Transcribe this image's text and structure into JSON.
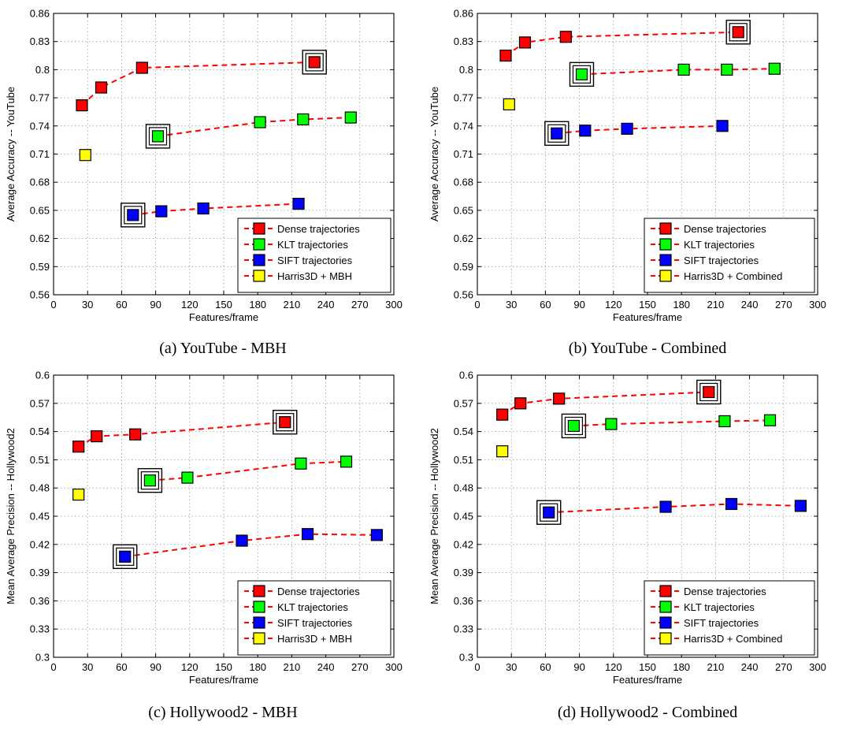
{
  "chart_data": [
    {
      "type": "scatter",
      "caption": "(a) YouTube - MBH",
      "xlabel": "Features/frame",
      "ylabel": "Average Accuracy -- YouTube",
      "xlim": [
        0,
        300
      ],
      "ylim": [
        0.56,
        0.86
      ],
      "xticks": [
        "0",
        "30",
        "60",
        "90",
        "120",
        "150",
        "180",
        "210",
        "240",
        "270",
        "300"
      ],
      "yticks": [
        "0.56",
        "0.59",
        "0.62",
        "0.65",
        "0.68",
        "0.71",
        "0.74",
        "0.77",
        "0.8",
        "0.83",
        "0.86"
      ],
      "grid": true,
      "legend_position": "bottom-right",
      "series": [
        {
          "name": "Dense trajectories",
          "color": "#ff0000",
          "line": true,
          "x": [
            25,
            42,
            78,
            230
          ],
          "y": [
            0.762,
            0.781,
            0.802,
            0.808
          ],
          "highlight_index": 3
        },
        {
          "name": "KLT trajectories",
          "color": "#00ff00",
          "line": true,
          "x": [
            92,
            182,
            220,
            262
          ],
          "y": [
            0.729,
            0.744,
            0.747,
            0.749
          ],
          "highlight_index": 0
        },
        {
          "name": "SIFT trajectories",
          "color": "#0000ff",
          "line": true,
          "x": [
            70,
            95,
            132,
            216
          ],
          "y": [
            0.645,
            0.649,
            0.652,
            0.657
          ],
          "highlight_index": 0
        },
        {
          "name": "Harris3D + MBH",
          "color": "#ffff00",
          "line": false,
          "x": [
            28
          ],
          "y": [
            0.709
          ],
          "highlight_index": null
        }
      ]
    },
    {
      "type": "scatter",
      "caption": "(b) YouTube - Combined",
      "xlabel": "Features/frame",
      "ylabel": "Average Accuracy -- YouTube",
      "xlim": [
        0,
        300
      ],
      "ylim": [
        0.56,
        0.86
      ],
      "xticks": [
        "0",
        "30",
        "60",
        "90",
        "120",
        "150",
        "180",
        "210",
        "240",
        "270",
        "300"
      ],
      "yticks": [
        "0.56",
        "0.59",
        "0.62",
        "0.65",
        "0.68",
        "0.71",
        "0.74",
        "0.77",
        "0.8",
        "0.83",
        "0.86"
      ],
      "grid": true,
      "legend_position": "bottom-right",
      "series": [
        {
          "name": "Dense trajectories",
          "color": "#ff0000",
          "line": true,
          "x": [
            25,
            42,
            78,
            230
          ],
          "y": [
            0.815,
            0.829,
            0.835,
            0.84
          ],
          "highlight_index": 3
        },
        {
          "name": "KLT trajectories",
          "color": "#00ff00",
          "line": true,
          "x": [
            92,
            182,
            220,
            262
          ],
          "y": [
            0.795,
            0.8,
            0.8,
            0.801
          ],
          "highlight_index": 0
        },
        {
          "name": "SIFT trajectories",
          "color": "#0000ff",
          "line": true,
          "x": [
            70,
            95,
            132,
            216
          ],
          "y": [
            0.732,
            0.735,
            0.737,
            0.74
          ],
          "highlight_index": 0
        },
        {
          "name": "Harris3D + Combined",
          "color": "#ffff00",
          "line": false,
          "x": [
            28
          ],
          "y": [
            0.763
          ],
          "highlight_index": null
        }
      ]
    },
    {
      "type": "scatter",
      "caption": "(c) Hollywood2 - MBH",
      "xlabel": "Features/frame",
      "ylabel": "Mean Average Precision -- Hollywood2",
      "xlim": [
        0,
        300
      ],
      "ylim": [
        0.3,
        0.6
      ],
      "xticks": [
        "0",
        "30",
        "60",
        "90",
        "120",
        "150",
        "180",
        "210",
        "240",
        "270",
        "300"
      ],
      "yticks": [
        "0.3",
        "0.33",
        "0.36",
        "0.39",
        "0.42",
        "0.45",
        "0.48",
        "0.51",
        "0.54",
        "0.57",
        "0.6"
      ],
      "grid": true,
      "legend_position": "bottom-right",
      "series": [
        {
          "name": "Dense trajectories",
          "color": "#ff0000",
          "line": true,
          "x": [
            22,
            38,
            72,
            204
          ],
          "y": [
            0.524,
            0.535,
            0.537,
            0.55
          ],
          "highlight_index": 3
        },
        {
          "name": "KLT trajectories",
          "color": "#00ff00",
          "line": true,
          "x": [
            85,
            118,
            218,
            258
          ],
          "y": [
            0.488,
            0.491,
            0.506,
            0.508
          ],
          "highlight_index": 0
        },
        {
          "name": "SIFT trajectories",
          "color": "#0000ff",
          "line": true,
          "x": [
            63,
            166,
            224,
            285
          ],
          "y": [
            0.407,
            0.424,
            0.431,
            0.43
          ],
          "highlight_index": 0
        },
        {
          "name": "Harris3D + MBH",
          "color": "#ffff00",
          "line": false,
          "x": [
            22
          ],
          "y": [
            0.473
          ],
          "highlight_index": null
        }
      ]
    },
    {
      "type": "scatter",
      "caption": "(d) Hollywood2 - Combined",
      "xlabel": "Features/frame",
      "ylabel": "Mean Average Precision -- Hollywood2",
      "xlim": [
        0,
        300
      ],
      "ylim": [
        0.3,
        0.6
      ],
      "xticks": [
        "0",
        "30",
        "60",
        "90",
        "120",
        "150",
        "180",
        "210",
        "240",
        "270",
        "300"
      ],
      "yticks": [
        "0.3",
        "0.33",
        "0.36",
        "0.39",
        "0.42",
        "0.45",
        "0.48",
        "0.51",
        "0.54",
        "0.57",
        "0.6"
      ],
      "grid": true,
      "legend_position": "bottom-right",
      "series": [
        {
          "name": "Dense trajectories",
          "color": "#ff0000",
          "line": true,
          "x": [
            22,
            38,
            72,
            204
          ],
          "y": [
            0.558,
            0.57,
            0.575,
            0.582
          ],
          "highlight_index": 3
        },
        {
          "name": "KLT trajectories",
          "color": "#00ff00",
          "line": true,
          "x": [
            85,
            118,
            218,
            258
          ],
          "y": [
            0.546,
            0.548,
            0.551,
            0.552
          ],
          "highlight_index": 0
        },
        {
          "name": "SIFT trajectories",
          "color": "#0000ff",
          "line": true,
          "x": [
            63,
            166,
            224,
            285
          ],
          "y": [
            0.454,
            0.46,
            0.463,
            0.461
          ],
          "highlight_index": 0
        },
        {
          "name": "Harris3D + Combined",
          "color": "#ffff00",
          "line": false,
          "x": [
            22
          ],
          "y": [
            0.519
          ],
          "highlight_index": null
        }
      ]
    }
  ]
}
